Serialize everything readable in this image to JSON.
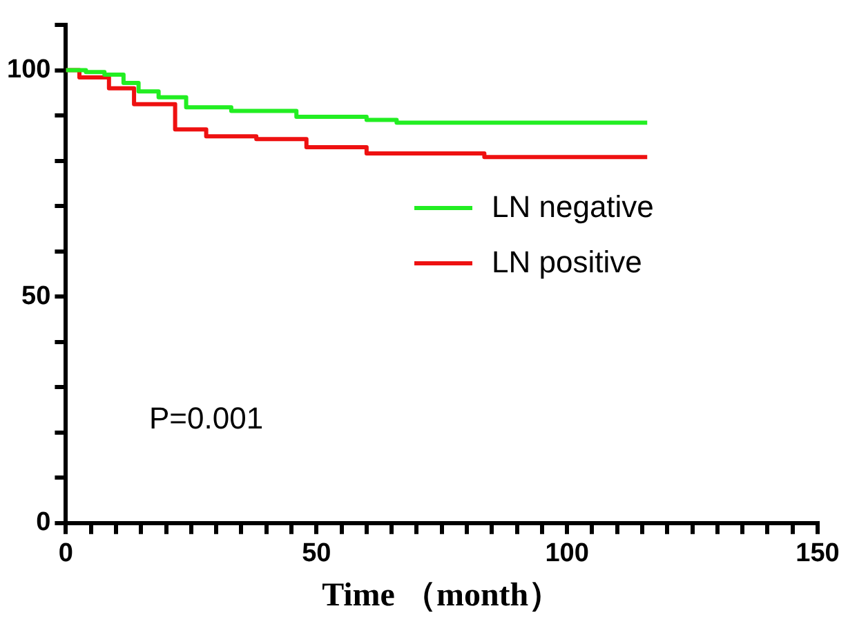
{
  "chart_data": {
    "type": "step",
    "xlabel": "Time （month）",
    "xlim": [
      0,
      150
    ],
    "xticks": [
      0,
      {
        "value": 5,
        "label": null
      },
      {
        "value": 10,
        "label": null
      },
      {
        "value": 15,
        "label": null
      },
      {
        "value": 20,
        "label": null
      },
      {
        "value": 25,
        "label": null
      },
      {
        "value": 30,
        "label": null
      },
      {
        "value": 35,
        "label": null
      },
      {
        "value": 40,
        "label": null
      },
      {
        "value": 45,
        "label": null
      },
      50,
      {
        "value": 55,
        "label": null
      },
      {
        "value": 60,
        "label": null
      },
      {
        "value": 65,
        "label": null
      },
      {
        "value": 70,
        "label": null
      },
      {
        "value": 75,
        "label": null
      },
      {
        "value": 80,
        "label": null
      },
      {
        "value": 85,
        "label": null
      },
      {
        "value": 90,
        "label": null
      },
      {
        "value": 95,
        "label": null
      },
      100,
      {
        "value": 105,
        "label": null
      },
      {
        "value": 110,
        "label": null
      },
      {
        "value": 115,
        "label": null
      },
      {
        "value": 120,
        "label": null
      },
      {
        "value": 125,
        "label": null
      },
      {
        "value": 130,
        "label": null
      },
      {
        "value": 135,
        "label": null
      },
      {
        "value": 140,
        "label": null
      },
      {
        "value": 145,
        "label": null
      },
      150
    ],
    "ylim": [
      0,
      110
    ],
    "yticks": [
      0,
      {
        "value": 10,
        "label": null
      },
      {
        "value": 20,
        "label": null
      },
      {
        "value": 30,
        "label": null
      },
      {
        "value": 40,
        "label": null
      },
      50,
      {
        "value": 60,
        "label": null
      },
      {
        "value": 70,
        "label": null
      },
      {
        "value": 80,
        "label": null
      },
      {
        "value": 90,
        "label": null
      },
      100,
      {
        "value": 110,
        "label": null
      }
    ],
    "grid": false,
    "legend": "right",
    "marker": "none",
    "annotations": [
      "P=0.001"
    ],
    "series": [
      {
        "name": "LN negative",
        "color": "#22ee22",
        "x": [
          0,
          4,
          7.7,
          11.5,
          14.5,
          18.5,
          24,
          33,
          46,
          60,
          66,
          116
        ],
        "values": [
          100,
          99.6,
          99,
          97.2,
          95.3,
          94,
          91.8,
          91,
          89.7,
          89,
          88.4,
          88.4
        ]
      },
      {
        "name": "LN positive",
        "color": "#ee1111",
        "x": [
          0,
          2.7,
          8.6,
          13.6,
          21.8,
          28,
          38,
          48,
          60,
          83.5,
          116
        ],
        "values": [
          100,
          98.4,
          96,
          92.5,
          86.9,
          85.4,
          84.8,
          83,
          81.6,
          80.8,
          80.8
        ]
      }
    ]
  }
}
